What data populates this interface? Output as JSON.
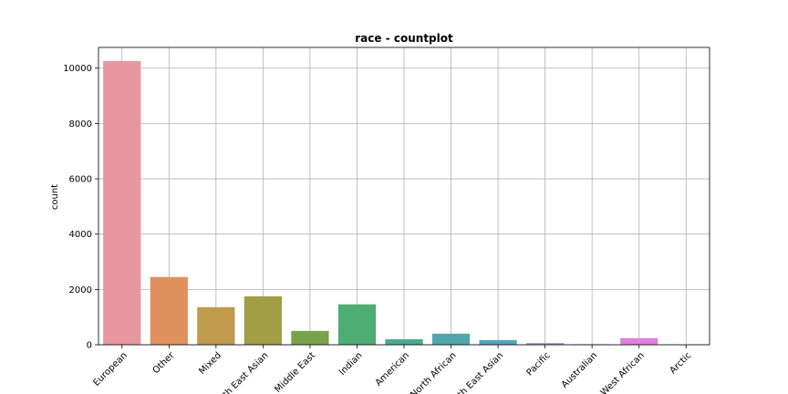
{
  "chart_data": {
    "type": "bar",
    "title": "race - countplot",
    "xlabel": "",
    "ylabel": "count",
    "ylim": [
      0,
      10750
    ],
    "yticks": [
      0,
      2000,
      4000,
      6000,
      8000,
      10000
    ],
    "grid": true,
    "categories": [
      "European",
      "Other",
      "Mixed",
      "South East Asian",
      "Middle East",
      "Indian",
      "American",
      "North African",
      "North East Asian",
      "Pacific",
      "Australian",
      "West African",
      "Arctic"
    ],
    "values": [
      10260,
      2450,
      1360,
      1750,
      500,
      1460,
      200,
      400,
      170,
      60,
      20,
      240,
      5
    ],
    "colors": [
      "#e8969f",
      "#e0915d",
      "#c09a4d",
      "#a19e45",
      "#78a34b",
      "#4ead73",
      "#4ba996",
      "#4fa7ad",
      "#51a5bf",
      "#8f9ee6",
      "#b791ea",
      "#e27fde",
      "#ea8ec1"
    ]
  }
}
